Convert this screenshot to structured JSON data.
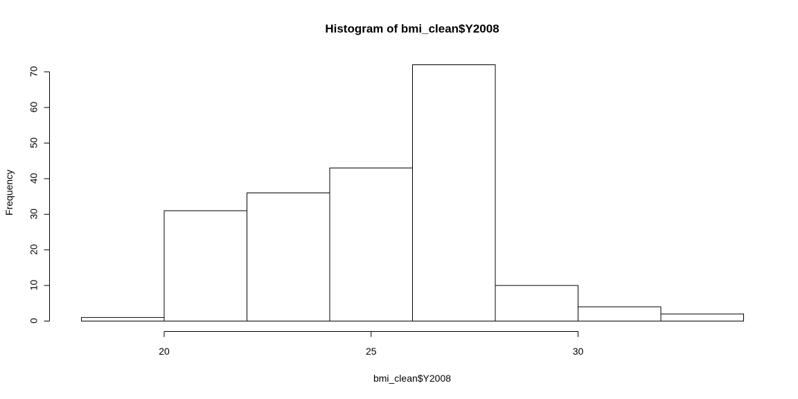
{
  "chart_data": {
    "type": "bar",
    "title": "Histogram of bmi_clean$Y2008",
    "xlabel": "bmi_clean$Y2008",
    "ylabel": "Frequency",
    "bins": [
      {
        "x0": 18,
        "x1": 20,
        "count": 1
      },
      {
        "x0": 20,
        "x1": 22,
        "count": 31
      },
      {
        "x0": 22,
        "x1": 24,
        "count": 36
      },
      {
        "x0": 24,
        "x1": 26,
        "count": 43
      },
      {
        "x0": 26,
        "x1": 28,
        "count": 72
      },
      {
        "x0": 28,
        "x1": 30,
        "count": 10
      },
      {
        "x0": 30,
        "x1": 32,
        "count": 4
      },
      {
        "x0": 32,
        "x1": 34,
        "count": 2
      }
    ],
    "xlim": [
      18,
      34
    ],
    "ylim": [
      0,
      72
    ],
    "x_ticks": [
      20,
      25,
      30
    ],
    "y_ticks": [
      0,
      10,
      20,
      30,
      40,
      50,
      60,
      70
    ],
    "grid": false,
    "legend": "none"
  }
}
